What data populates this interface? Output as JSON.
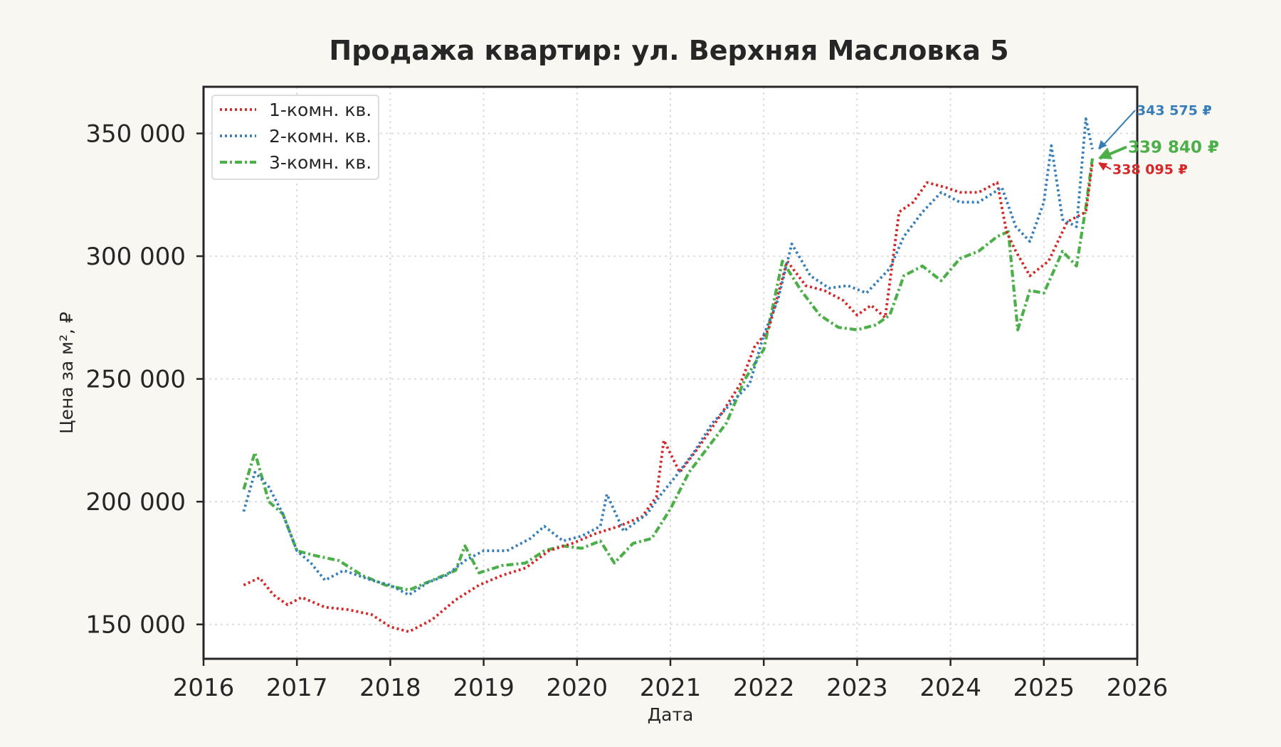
{
  "chart_data": {
    "type": "line",
    "title": "Продажа квартир: ул. Верхняя Масловка 5",
    "xlabel": "Дата",
    "ylabel": "Цена за м², ₽",
    "xlim": [
      2016,
      2026
    ],
    "ylim": [
      136000,
      369000
    ],
    "x_ticks": [
      2016,
      2017,
      2018,
      2019,
      2020,
      2021,
      2022,
      2023,
      2024,
      2025,
      2026
    ],
    "x_tick_labels": [
      "2016",
      "2017",
      "2018",
      "2019",
      "2020",
      "2021",
      "2022",
      "2023",
      "2024",
      "2025",
      "2026"
    ],
    "y_ticks": [
      150000,
      200000,
      250000,
      300000,
      350000
    ],
    "y_tick_labels": [
      "150 000",
      "200 000",
      "250 000",
      "300 000",
      "350 000"
    ],
    "grid": true,
    "legend_position": "top-left",
    "series": [
      {
        "name": "1-комн. кв.",
        "color": "#d62728",
        "style": "dotted",
        "x": [
          2016.43,
          2016.6,
          2016.75,
          2016.9,
          2017.05,
          2017.3,
          2017.55,
          2017.8,
          2018.0,
          2018.2,
          2018.45,
          2018.7,
          2018.95,
          2019.2,
          2019.45,
          2019.7,
          2019.95,
          2020.2,
          2020.45,
          2020.7,
          2020.85,
          2020.93,
          2021.1,
          2021.3,
          2021.55,
          2021.75,
          2021.9,
          2022.05,
          2022.25,
          2022.45,
          2022.65,
          2022.85,
          2023.0,
          2023.15,
          2023.3,
          2023.45,
          2023.6,
          2023.75,
          2023.95,
          2024.1,
          2024.3,
          2024.5,
          2024.6,
          2024.7,
          2024.85,
          2025.05,
          2025.25,
          2025.45,
          2025.52
        ],
        "y": [
          166000,
          169000,
          162000,
          158000,
          161000,
          157000,
          156000,
          154000,
          149000,
          147000,
          152000,
          160000,
          166000,
          170000,
          173000,
          180000,
          183000,
          187000,
          190000,
          194000,
          202000,
          225000,
          212000,
          222000,
          236000,
          248000,
          263000,
          270000,
          298000,
          288000,
          286000,
          282000,
          276000,
          280000,
          275000,
          318000,
          322000,
          330000,
          328000,
          326000,
          326000,
          330000,
          310000,
          302000,
          292000,
          298000,
          314000,
          318000,
          338095
        ]
      },
      {
        "name": "2-комн. кв.",
        "color": "#377eb8",
        "style": "dotted",
        "x": [
          2016.43,
          2016.55,
          2016.7,
          2016.85,
          2017.0,
          2017.15,
          2017.3,
          2017.5,
          2017.8,
          2018.0,
          2018.2,
          2018.4,
          2018.6,
          2018.8,
          2019.0,
          2019.25,
          2019.5,
          2019.65,
          2019.85,
          2020.05,
          2020.25,
          2020.32,
          2020.5,
          2020.75,
          2020.9,
          2021.05,
          2021.25,
          2021.45,
          2021.65,
          2021.85,
          2022.0,
          2022.15,
          2022.3,
          2022.5,
          2022.7,
          2022.9,
          2023.1,
          2023.35,
          2023.5,
          2023.7,
          2023.9,
          2024.1,
          2024.3,
          2024.55,
          2024.7,
          2024.85,
          2025.0,
          2025.08,
          2025.2,
          2025.35,
          2025.45,
          2025.52
        ],
        "y": [
          196000,
          212000,
          206000,
          195000,
          180000,
          175000,
          168000,
          172000,
          168000,
          166000,
          162000,
          167000,
          170000,
          176000,
          180000,
          180000,
          185000,
          190000,
          184000,
          186000,
          190000,
          203000,
          188000,
          195000,
          203000,
          210000,
          220000,
          232000,
          240000,
          248000,
          268000,
          282000,
          305000,
          292000,
          287000,
          288000,
          285000,
          295000,
          308000,
          318000,
          326000,
          322000,
          322000,
          328000,
          312000,
          306000,
          322000,
          345000,
          315000,
          312000,
          356000,
          343575
        ]
      },
      {
        "name": "3-комн. кв.",
        "color": "#4daf4a",
        "style": "dashdot",
        "x": [
          2016.43,
          2016.55,
          2016.7,
          2016.85,
          2017.0,
          2017.2,
          2017.45,
          2017.7,
          2017.95,
          2018.2,
          2018.45,
          2018.7,
          2018.8,
          2018.95,
          2019.2,
          2019.45,
          2019.65,
          2019.85,
          2020.05,
          2020.25,
          2020.4,
          2020.6,
          2020.8,
          2021.0,
          2021.2,
          2021.4,
          2021.6,
          2021.8,
          2022.0,
          2022.2,
          2022.4,
          2022.6,
          2022.8,
          2023.0,
          2023.2,
          2023.35,
          2023.5,
          2023.7,
          2023.9,
          2024.1,
          2024.3,
          2024.5,
          2024.62,
          2024.72,
          2024.85,
          2025.0,
          2025.2,
          2025.35,
          2025.45,
          2025.52
        ],
        "y": [
          205000,
          220000,
          200000,
          195000,
          180000,
          178000,
          176000,
          170000,
          166000,
          164000,
          168000,
          172000,
          182000,
          171000,
          174000,
          175000,
          180000,
          182000,
          181000,
          184000,
          175000,
          183000,
          185000,
          197000,
          212000,
          222000,
          232000,
          250000,
          262000,
          298000,
          286000,
          276000,
          271000,
          270000,
          272000,
          276000,
          292000,
          296000,
          290000,
          299000,
          302000,
          308000,
          310000,
          270000,
          286000,
          285000,
          302000,
          296000,
          320000,
          339840
        ]
      }
    ],
    "annotations": [
      {
        "text": "343 575 ₽",
        "value": 343575,
        "color": "#377eb8"
      },
      {
        "text": "339 840 ₽",
        "value": 339840,
        "color": "#4daf4a"
      },
      {
        "text": "338 095 ₽",
        "value": 338095,
        "color": "#d62728"
      }
    ]
  }
}
